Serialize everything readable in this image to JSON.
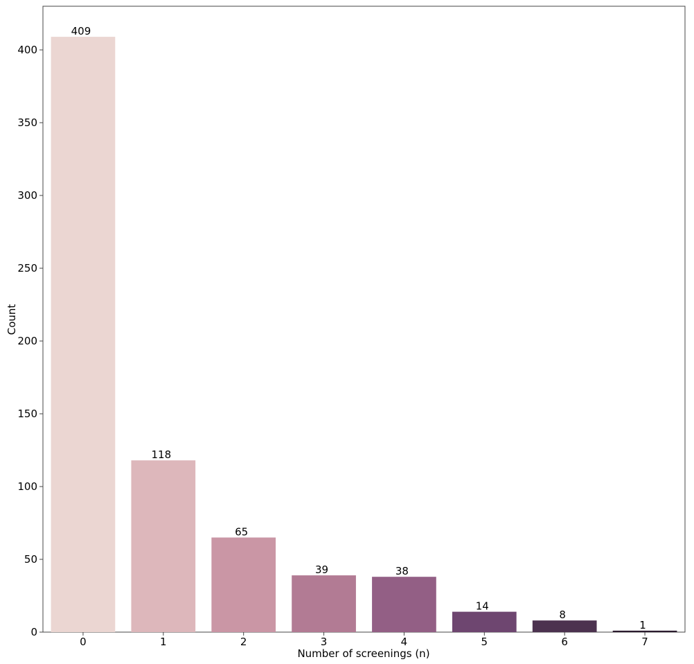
{
  "chart_data": {
    "type": "bar",
    "categories": [
      "0",
      "1",
      "2",
      "3",
      "4",
      "5",
      "6",
      "7"
    ],
    "values": [
      409,
      118,
      65,
      39,
      38,
      14,
      8,
      1
    ],
    "data_labels": [
      "409",
      "118",
      "65",
      "39",
      "38",
      "14",
      "8",
      "1"
    ],
    "title": "",
    "xlabel": "Number of screenings (n)",
    "ylabel": "Count",
    "ylim": [
      0,
      430
    ],
    "yticks": [
      0,
      50,
      100,
      150,
      200,
      250,
      300,
      350,
      400
    ],
    "ytick_labels": [
      "0",
      "50",
      "100",
      "150",
      "200",
      "250",
      "300",
      "350",
      "400"
    ],
    "grid": false,
    "legend": "none",
    "colors": [
      "#ebd6d2",
      "#ddb7bb",
      "#ca96a5",
      "#b27b94",
      "#935f85",
      "#6e4670",
      "#4c324f",
      "#2b1b2e"
    ]
  }
}
